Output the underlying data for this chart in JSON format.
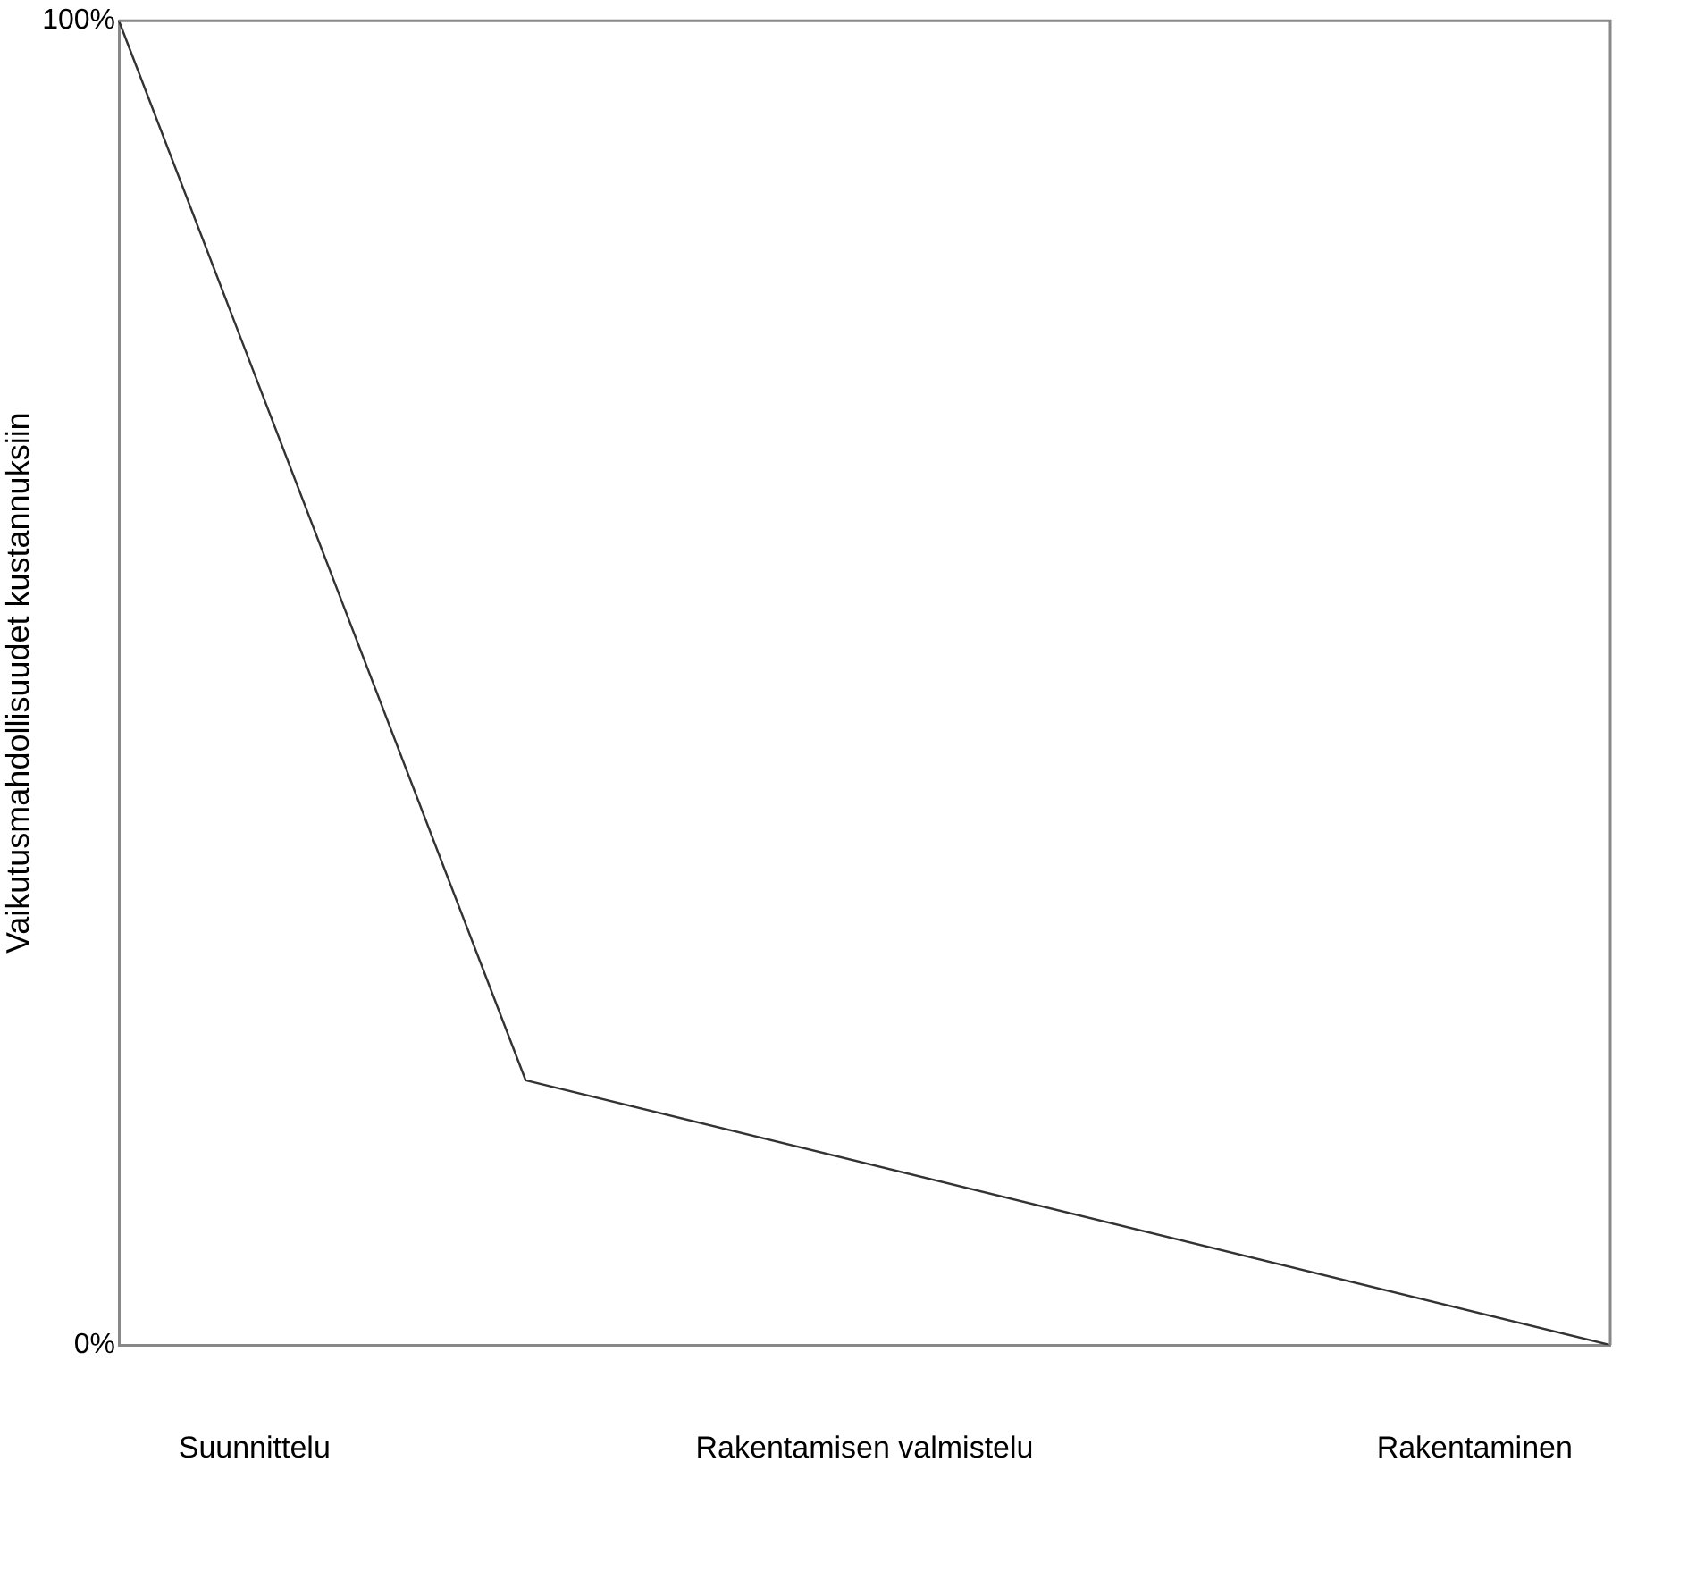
{
  "chart_data": {
    "type": "line",
    "ylabel": "Vaikutusmahdollisuudet kustannuksiin",
    "categories": [
      null,
      null,
      "Suunnittelu",
      null,
      null,
      null,
      null,
      null,
      null,
      null,
      null,
      "Rakentamisen valmistelu",
      null,
      null,
      null,
      null,
      null,
      null,
      null,
      null,
      "Rakentaminen",
      null,
      null
    ],
    "series": [
      {
        "color": "#333333",
        "values": [
          100,
          null,
          null,
          null,
          null,
          null,
          20,
          null,
          null,
          null,
          null,
          null,
          null,
          null,
          null,
          null,
          null,
          null,
          null,
          null,
          null,
          null,
          0
        ]
      }
    ],
    "ylim": [
      0,
      100
    ],
    "yticks": [
      {
        "value": 0,
        "label": "0%"
      },
      {
        "value": 100,
        "label": "100%"
      }
    ],
    "grid": false,
    "legend": false,
    "marker": "none",
    "line_style": "solid"
  }
}
